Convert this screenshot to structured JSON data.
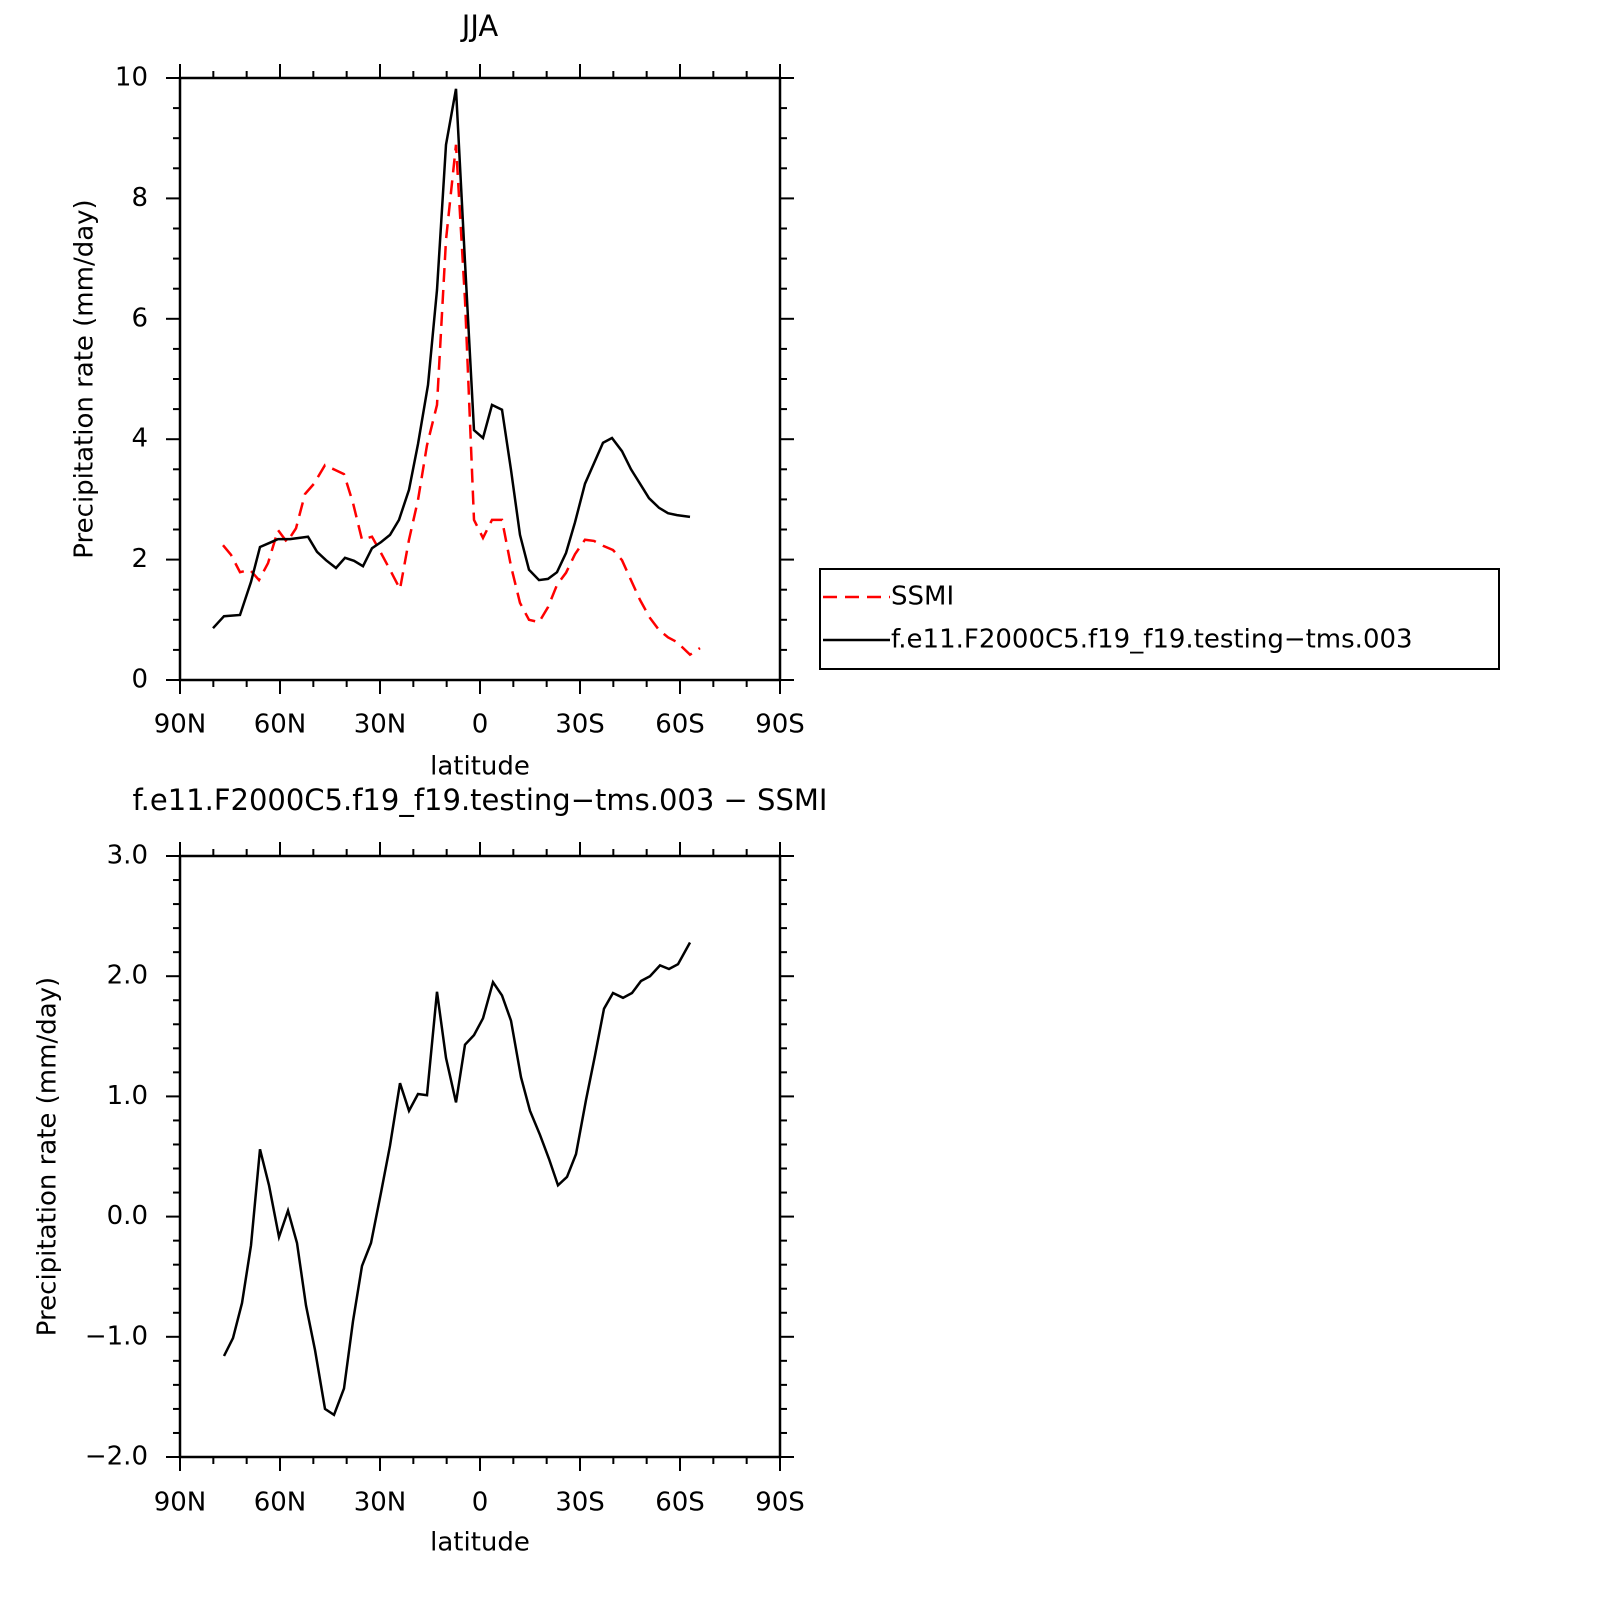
{
  "chart_data": [
    {
      "type": "line",
      "title": "JJA",
      "xlabel": "latitude",
      "ylabel": "Precipitation rate (mm/day)",
      "xlim": [
        90,
        -90
      ],
      "xticks": [
        {
          "value": 90,
          "label": "90N"
        },
        {
          "value": 60,
          "label": "60N"
        },
        {
          "value": 30,
          "label": "30N"
        },
        0,
        {
          "value": -30,
          "label": "30S"
        },
        {
          "value": -60,
          "label": "60S"
        },
        {
          "value": -90,
          "label": "90S"
        }
      ],
      "ylim": [
        0,
        10
      ],
      "yticks": [
        0,
        2,
        4,
        6,
        8,
        10
      ],
      "legend": "right",
      "series": [
        {
          "name": "SSMI",
          "color": "#ff0000",
          "dash": true,
          "x": [
            77.1,
            74.7,
            72,
            69,
            66.3,
            63.6,
            60.6,
            57.9,
            55.2,
            52.5,
            49.8,
            46.5,
            43.5,
            40.8,
            38.1,
            35.4,
            32.4,
            29.7,
            27,
            24,
            21.3,
            18.6,
            15.9,
            12.9,
            10.2,
            7.2,
            4.5,
            1.8,
            -0.9,
            -3.6,
            -6.6,
            -9.3,
            -12,
            -14.7,
            -17.7,
            -20.4,
            -23.1,
            -25.8,
            -28.5,
            -31.5,
            -34.2,
            -36.9,
            -39.9,
            -42.6,
            -45.3,
            -48,
            -51,
            -53.7,
            -56.4,
            -59.1,
            -63,
            -66
          ],
          "values": [
            2.24,
            2.08,
            1.79,
            1.83,
            1.66,
            1.94,
            2.49,
            2.29,
            2.52,
            3.09,
            3.26,
            3.57,
            3.49,
            3.42,
            2.94,
            2.33,
            2.38,
            2.11,
            1.83,
            1.51,
            2.33,
            2.99,
            3.9,
            4.57,
            7.31,
            8.89,
            6.31,
            2.66,
            2.36,
            2.66,
            2.66,
            1.89,
            1.28,
            1.0,
            0.96,
            1.21,
            1.58,
            1.78,
            2.09,
            2.33,
            2.31,
            2.23,
            2.16,
            1.99,
            1.66,
            1.33,
            1.03,
            0.83,
            0.71,
            0.63,
            0.42,
            0.53
          ]
        },
        {
          "name": "f.e11.F2000C5.f19_f19.testing−tms.003",
          "color": "#000000",
          "dash": false,
          "x": [
            80.1,
            76.8,
            72,
            68.7,
            66,
            63,
            60.6,
            57,
            51.6,
            48.9,
            46.2,
            43.2,
            40.5,
            37.8,
            35.1,
            32.4,
            29.7,
            27,
            24.3,
            21.3,
            18.6,
            15.6,
            12.9,
            10.2,
            7.2,
            4.5,
            1.8,
            -0.9,
            -3.6,
            -6.6,
            -9.3,
            -12,
            -14.7,
            -17.7,
            -20.4,
            -23.1,
            -25.8,
            -28.5,
            -31.5,
            -34.2,
            -36.9,
            -39.6,
            -42.6,
            -45.3,
            -48,
            -50.7,
            -53.7,
            -56.4,
            -59.1,
            -63
          ],
          "values": [
            0.86,
            1.06,
            1.08,
            1.63,
            2.21,
            2.28,
            2.34,
            2.34,
            2.38,
            2.13,
            1.99,
            1.86,
            2.03,
            1.98,
            1.89,
            2.19,
            2.29,
            2.41,
            2.66,
            3.16,
            3.92,
            4.9,
            6.48,
            8.89,
            9.82,
            6.94,
            4.15,
            4.02,
            4.57,
            4.49,
            3.49,
            2.41,
            1.83,
            1.66,
            1.68,
            1.79,
            2.11,
            2.62,
            3.26,
            3.6,
            3.94,
            4.02,
            3.8,
            3.5,
            3.26,
            3.02,
            2.86,
            2.77,
            2.74,
            2.71
          ]
        }
      ]
    },
    {
      "type": "line",
      "title": "f.e11.F2000C5.f19_f19.testing−tms.003 − SSMI",
      "xlabel": "latitude",
      "ylabel": "Precipitation rate (mm/day)",
      "xlim": [
        90,
        -90
      ],
      "xticks": [
        {
          "value": 90,
          "label": "90N"
        },
        {
          "value": 60,
          "label": "60N"
        },
        {
          "value": 30,
          "label": "30N"
        },
        0,
        {
          "value": -30,
          "label": "30S"
        },
        {
          "value": -60,
          "label": "60S"
        },
        {
          "value": -90,
          "label": "90S"
        }
      ],
      "ylim": [
        -2,
        3
      ],
      "yticks": [
        {
          "value": -2,
          "label": "−2.0"
        },
        {
          "value": -1,
          "label": "−1.0"
        },
        {
          "value": 0,
          "label": "0.0"
        },
        {
          "value": 1,
          "label": "1.0"
        },
        {
          "value": 2,
          "label": "2.0"
        },
        {
          "value": 3,
          "label": "3.0"
        }
      ],
      "series": [
        {
          "color": "#000000",
          "dash": false,
          "x": [
            76.8,
            74.1,
            71.4,
            68.7,
            66,
            63.3,
            60.3,
            57.6,
            54.9,
            52.2,
            49.5,
            46.5,
            43.8,
            40.8,
            38.1,
            35.4,
            32.7,
            29.7,
            27,
            24,
            21.3,
            18.6,
            15.9,
            12.9,
            10.2,
            7.2,
            4.5,
            1.8,
            -0.9,
            -3.9,
            -6.6,
            -9.3,
            -12.3,
            -15,
            -18,
            -20.7,
            -23.4,
            -26.1,
            -28.8,
            -31.8,
            -34.5,
            -37.2,
            -39.9,
            -42.9,
            -45.6,
            -48.3,
            -51,
            -54,
            -56.7,
            -59.4,
            -63
          ],
          "values": [
            -1.16,
            -1.01,
            -0.72,
            -0.24,
            0.56,
            0.26,
            -0.17,
            0.05,
            -0.22,
            -0.74,
            -1.11,
            -1.6,
            -1.65,
            -1.43,
            -0.87,
            -0.41,
            -0.22,
            0.2,
            0.59,
            1.11,
            0.88,
            1.02,
            1.01,
            1.87,
            1.32,
            0.95,
            1.43,
            1.51,
            1.65,
            1.95,
            1.84,
            1.63,
            1.16,
            0.88,
            0.68,
            0.48,
            0.26,
            0.33,
            0.52,
            0.97,
            1.34,
            1.73,
            1.86,
            1.82,
            1.86,
            1.96,
            2.0,
            2.09,
            2.06,
            2.1,
            2.28
          ]
        }
      ]
    }
  ]
}
